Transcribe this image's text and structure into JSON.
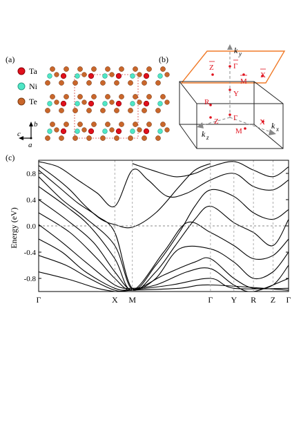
{
  "panel_a": {
    "label": "(a)",
    "legend": [
      {
        "name": "Ta",
        "color": "#e0101c"
      },
      {
        "name": "Ni",
        "color": "#4fe7c6"
      },
      {
        "name": "Te",
        "color": "#c9662a"
      }
    ],
    "axes": {
      "b": "b",
      "c": "c",
      "a": "a"
    }
  },
  "panel_b": {
    "label": "(b)",
    "accent": "#f07a28",
    "point_color": "#e0101c",
    "axes": {
      "ky": "k",
      "ky_sub": "y",
      "kx": "k",
      "kx_sub": "x",
      "kz": "k",
      "kz_sub": "z"
    },
    "points": {
      "zbar": "Z",
      "gammabar": "Γ",
      "mbar": "M",
      "xbar": "X",
      "y": "Y",
      "r": "R",
      "gamma": "Γ",
      "z": "Z",
      "m": "M",
      "x": "X"
    }
  },
  "panel_c": {
    "label": "(c)",
    "ylabel": "Energy (eV)",
    "yticks": [
      "0.8",
      "0.4",
      "0.0",
      "-0.4",
      "-0.8"
    ],
    "kpoints": [
      "Γ",
      "X",
      "M",
      "Γ",
      "Y",
      "R",
      "Z",
      "Γ"
    ]
  },
  "chart_data": {
    "type": "line",
    "ylabel": "Energy (eV)",
    "ylim": [
      -1.0,
      1.0
    ],
    "x_ticks": [
      "Γ",
      "X",
      "M",
      "Γ",
      "Y",
      "R",
      "Z",
      "Γ"
    ],
    "x_tick_positions": [
      0,
      1.95,
      2.4,
      4.4,
      5.0,
      5.5,
      6.0,
      6.4
    ],
    "fermi_level": 0.0,
    "series": [
      {
        "values": [
          [
            0,
            0.92
          ],
          [
            0.4,
            0.75
          ],
          [
            0.8,
            0.55
          ],
          [
            1.2,
            0.3
          ],
          [
            1.6,
            0.1
          ],
          [
            1.95,
            0.02
          ],
          [
            2.4,
            -0.02
          ],
          [
            3.0,
            0.2
          ],
          [
            3.6,
            0.6
          ],
          [
            4.0,
            0.85
          ],
          [
            4.4,
            0.95
          ]
        ]
      },
      {
        "values": [
          [
            0,
            0.85
          ],
          [
            0.5,
            0.6
          ],
          [
            1.0,
            0.35
          ],
          [
            1.5,
            0.15
          ],
          [
            1.95,
            -0.1
          ],
          [
            2.4,
            -0.95
          ],
          [
            3.0,
            -0.6
          ],
          [
            3.6,
            -0.1
          ],
          [
            4.0,
            0.3
          ],
          [
            4.4,
            0.55
          ],
          [
            5.0,
            0.45
          ],
          [
            5.5,
            0.2
          ],
          [
            6.0,
            0.1
          ],
          [
            6.4,
            0.25
          ]
        ]
      },
      {
        "values": [
          [
            0,
            0.75
          ],
          [
            0.6,
            0.4
          ],
          [
            1.2,
            0.12
          ],
          [
            1.95,
            -0.3
          ],
          [
            2.4,
            -0.97
          ],
          [
            3.0,
            -0.7
          ],
          [
            3.5,
            -0.3
          ],
          [
            4.0,
            0.1
          ],
          [
            4.4,
            0.3
          ],
          [
            5.0,
            0.05
          ],
          [
            5.5,
            -0.1
          ],
          [
            6.0,
            -0.3
          ],
          [
            6.4,
            0.1
          ]
        ]
      },
      {
        "values": [
          [
            0,
            0.6
          ],
          [
            0.7,
            0.3
          ],
          [
            1.3,
            0.0
          ],
          [
            1.95,
            -0.5
          ],
          [
            2.4,
            -0.98
          ],
          [
            3.2,
            -0.4
          ],
          [
            3.8,
            0.05
          ],
          [
            4.4,
            -0.1
          ],
          [
            5.0,
            -0.3
          ],
          [
            5.5,
            -0.5
          ],
          [
            6.0,
            -0.45
          ],
          [
            6.4,
            -0.2
          ]
        ]
      },
      {
        "values": [
          [
            0,
            0.4
          ],
          [
            0.7,
            0.1
          ],
          [
            1.4,
            -0.25
          ],
          [
            1.95,
            -0.7
          ],
          [
            2.4,
            -0.98
          ],
          [
            3.0,
            -0.8
          ],
          [
            3.6,
            -0.35
          ],
          [
            4.4,
            -0.35
          ],
          [
            5.0,
            -0.55
          ],
          [
            5.5,
            -0.8
          ],
          [
            6.0,
            -0.7
          ],
          [
            6.4,
            -0.4
          ]
        ]
      },
      {
        "values": [
          [
            0,
            0.2
          ],
          [
            0.8,
            -0.1
          ],
          [
            1.5,
            -0.5
          ],
          [
            1.95,
            -0.8
          ],
          [
            2.4,
            -0.98
          ],
          [
            3.2,
            -0.75
          ],
          [
            4.0,
            -0.55
          ],
          [
            4.4,
            -0.5
          ],
          [
            5.0,
            -0.8
          ],
          [
            5.5,
            -0.95
          ],
          [
            6.0,
            -0.9
          ],
          [
            6.4,
            -0.6
          ]
        ]
      },
      {
        "values": [
          [
            0,
            0.02
          ],
          [
            0.6,
            -0.25
          ],
          [
            1.2,
            -0.55
          ],
          [
            1.95,
            -0.9
          ],
          [
            2.4,
            -0.95
          ],
          [
            3.0,
            -0.9
          ],
          [
            3.8,
            -0.7
          ],
          [
            4.4,
            -0.65
          ],
          [
            5.0,
            -0.9
          ],
          [
            5.5,
            -1.0
          ],
          [
            6.4,
            -0.8
          ]
        ]
      },
      {
        "values": [
          [
            0,
            -0.2
          ],
          [
            0.6,
            -0.4
          ],
          [
            1.2,
            -0.7
          ],
          [
            1.95,
            -0.95
          ],
          [
            2.4,
            -0.97
          ],
          [
            3.4,
            -0.9
          ],
          [
            4.4,
            -0.8
          ],
          [
            5.0,
            -0.95
          ],
          [
            6.4,
            -0.95
          ]
        ]
      },
      {
        "values": [
          [
            0,
            -0.45
          ],
          [
            0.7,
            -0.6
          ],
          [
            1.3,
            -0.8
          ],
          [
            1.95,
            -0.98
          ],
          [
            2.4,
            -0.98
          ],
          [
            3.6,
            -0.95
          ],
          [
            4.4,
            -0.9
          ],
          [
            6.4,
            -0.98
          ]
        ]
      },
      {
        "values": [
          [
            0,
            -0.7
          ],
          [
            0.8,
            -0.82
          ],
          [
            1.5,
            -0.95
          ],
          [
            1.95,
            -1.0
          ]
        ]
      },
      {
        "values": [
          [
            0,
            0.98
          ],
          [
            0.5,
            0.9
          ],
          [
            1.0,
            0.7
          ],
          [
            1.5,
            0.5
          ],
          [
            1.95,
            0.3
          ],
          [
            2.4,
            0.85
          ],
          [
            2.8,
            0.7
          ],
          [
            3.3,
            0.45
          ],
          [
            3.8,
            0.5
          ],
          [
            4.4,
            0.7
          ],
          [
            5.0,
            0.8
          ],
          [
            5.5,
            0.6
          ],
          [
            6.0,
            0.55
          ],
          [
            6.4,
            0.7
          ]
        ]
      },
      {
        "values": [
          [
            2.4,
            0.95
          ],
          [
            2.9,
            0.85
          ],
          [
            3.5,
            0.75
          ],
          [
            4.0,
            0.8
          ],
          [
            4.4,
            0.9
          ],
          [
            5.0,
            0.98
          ],
          [
            5.5,
            0.85
          ],
          [
            6.0,
            0.75
          ],
          [
            6.4,
            0.9
          ]
        ]
      }
    ]
  }
}
